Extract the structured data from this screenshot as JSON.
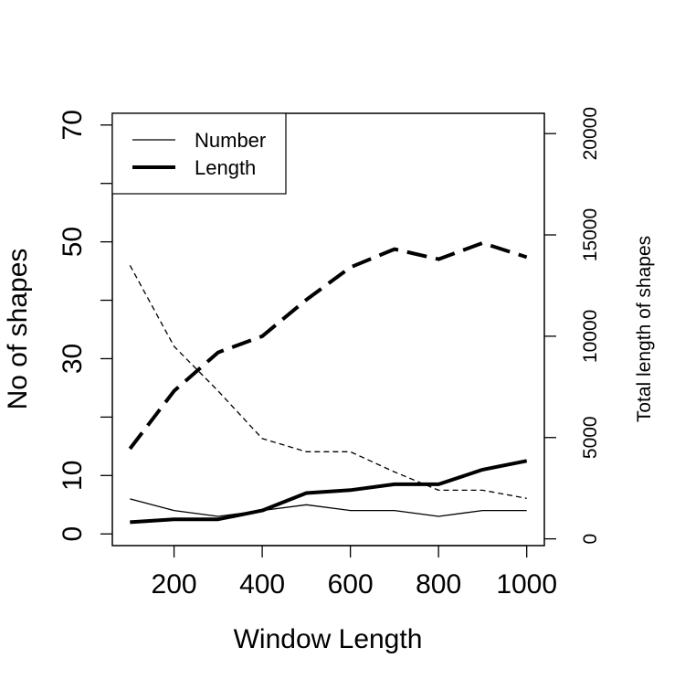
{
  "chart_data": {
    "type": "line",
    "title": "",
    "xlabel": "Window Length",
    "ylabel_left": "No of shapes",
    "ylabel_right": "Total length of shapes",
    "x": [
      100,
      200,
      300,
      400,
      500,
      600,
      700,
      800,
      900,
      1000
    ],
    "x_ticks": [
      200,
      400,
      600,
      800,
      1000
    ],
    "y_left_ticks": [
      0,
      10,
      30,
      50,
      70
    ],
    "y_left_minor_ticks": [
      20,
      40,
      60
    ],
    "y_right_ticks": [
      0,
      5000,
      10000,
      15000,
      20000
    ],
    "xlim": [
      60,
      1040
    ],
    "y_left_lim": [
      -2,
      72
    ],
    "y_right_lim": [
      -333,
      21000
    ],
    "legend": {
      "position": "top-left",
      "entries": [
        {
          "label": "Number",
          "weight": "thin"
        },
        {
          "label": "Length",
          "weight": "thick"
        }
      ]
    },
    "series": [
      {
        "name": "Number",
        "axis": "left",
        "style": "solid",
        "weight": "thin",
        "values": [
          6,
          4,
          3,
          4,
          5,
          4,
          4,
          3,
          4,
          4
        ]
      },
      {
        "name": "Length",
        "axis": "left",
        "style": "solid",
        "weight": "thick",
        "values": [
          2,
          2.5,
          2.5,
          4,
          7,
          7.5,
          8.5,
          8.5,
          11,
          12.5
        ]
      },
      {
        "name": "Number",
        "axis": "right",
        "style": "dashed",
        "weight": "thin",
        "values": [
          13500,
          9500,
          7300,
          4950,
          4300,
          4300,
          3300,
          2400,
          2400,
          2000
        ]
      },
      {
        "name": "Length",
        "axis": "right",
        "style": "dashed",
        "weight": "thick",
        "values": [
          4450,
          7300,
          9200,
          10000,
          11800,
          13400,
          14300,
          13800,
          14600,
          13900
        ]
      }
    ]
  }
}
